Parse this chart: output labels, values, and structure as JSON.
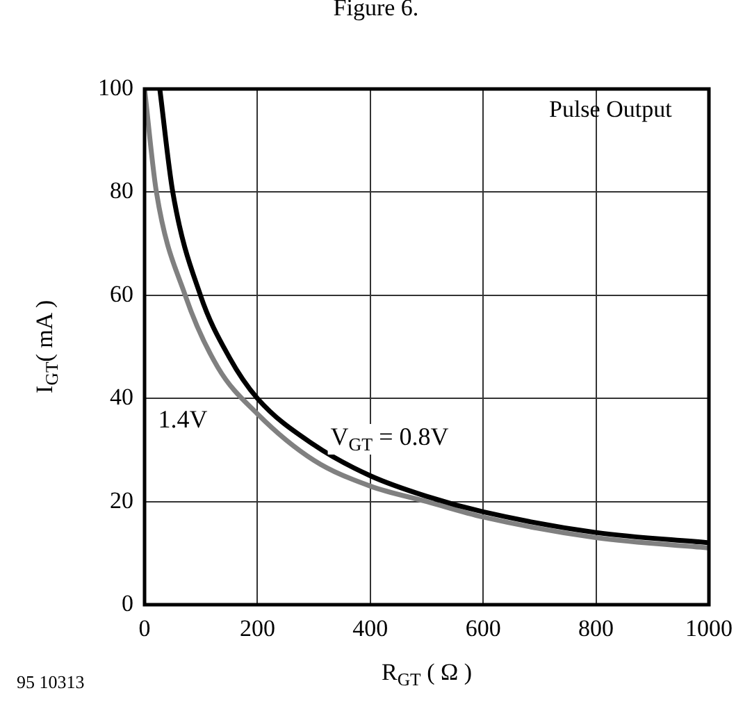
{
  "chart_data": {
    "type": "line",
    "title": "Figure 6.",
    "xlabel": "R$_{GT}$ ( Ω )",
    "ylabel": "I$_{GT}$( mA )",
    "annotations": [
      "Pulse Output",
      "95 10313"
    ],
    "xlim": [
      0,
      1000
    ],
    "xticks": [
      0,
      200,
      400,
      600,
      800,
      1000
    ],
    "ylim": [
      0,
      100
    ],
    "yticks": [
      0,
      20,
      40,
      60,
      80,
      100
    ],
    "grid": true,
    "legend": false,
    "marker": "none",
    "line_style": "solid",
    "series": [
      {
        "name": "V$_{GT}$ = 0.8V",
        "color": "#000000",
        "x": [
          27,
          50,
          99,
          150,
          200,
          300,
          400,
          500,
          600,
          800,
          1000
        ],
        "values": [
          100,
          80,
          60,
          48,
          40,
          31,
          25,
          21,
          18,
          14,
          12
        ]
      },
      {
        "name": "1.4V",
        "color": "#808080",
        "x": [
          0,
          21,
          72,
          130,
          200,
          300,
          400,
          500,
          600,
          800,
          1000
        ],
        "values": [
          100,
          80,
          60,
          46,
          37,
          28,
          23,
          20,
          17,
          13,
          11
        ]
      }
    ]
  }
}
